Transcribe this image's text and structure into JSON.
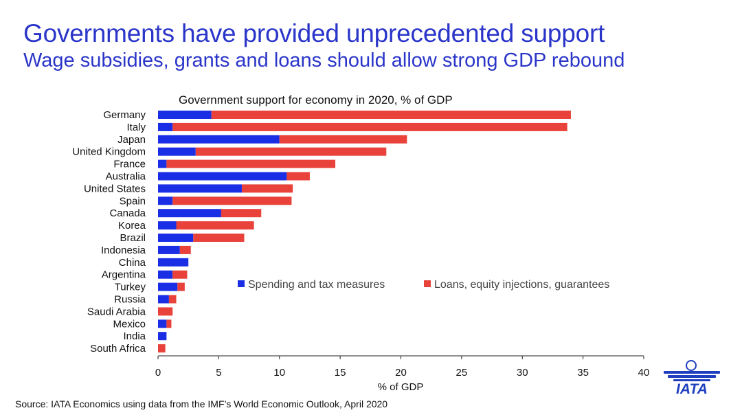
{
  "header": {
    "title": "Governments have provided unprecedented support",
    "subtitle": "Wage subsidies, grants and loans should allow strong GDP rebound"
  },
  "source": "Source: IATA Economics using data from the IMF’s World Economic Outlook, April 2020",
  "logo": {
    "text": "IATA",
    "icon": "globe-wings-icon"
  },
  "colors": {
    "brand": "#2a35c9",
    "spending": "#1a2ee6",
    "loans": "#e8423a"
  },
  "chart_data": {
    "type": "bar",
    "orientation": "horizontal",
    "stacked": true,
    "title": "Government support for economy in 2020, % of GDP",
    "xlabel": "% of GDP",
    "ylabel": "",
    "xlim": [
      0,
      40
    ],
    "xticks": [
      "0",
      "5",
      "10",
      "15",
      "20",
      "25",
      "30",
      "35",
      "40"
    ],
    "grid": false,
    "legend_position": "center-right",
    "categories": [
      "Germany",
      "Italy",
      "Japan",
      "United Kingdom",
      "France",
      "Australia",
      "United States",
      "Spain",
      "Canada",
      "Korea",
      "Brazil",
      "Indonesia",
      "China",
      "Argentina",
      "Turkey",
      "Russia",
      "Saudi Arabia",
      "Mexico",
      "India",
      "South Africa"
    ],
    "series": [
      {
        "name": "Spending and tax measures",
        "color": "#1a2ee6",
        "values": [
          4.4,
          1.2,
          10.0,
          3.1,
          0.7,
          10.6,
          6.9,
          1.2,
          5.2,
          1.5,
          2.9,
          1.8,
          2.5,
          1.2,
          1.6,
          0.9,
          0.0,
          0.7,
          0.7,
          0.0
        ]
      },
      {
        "name": "Loans, equity injections, guarantees",
        "color": "#e8423a",
        "values": [
          29.6,
          32.5,
          10.5,
          15.7,
          13.9,
          1.9,
          4.2,
          9.8,
          3.3,
          6.4,
          4.2,
          0.9,
          0.0,
          1.2,
          0.6,
          0.6,
          1.2,
          0.4,
          0.0,
          0.6
        ]
      }
    ]
  }
}
